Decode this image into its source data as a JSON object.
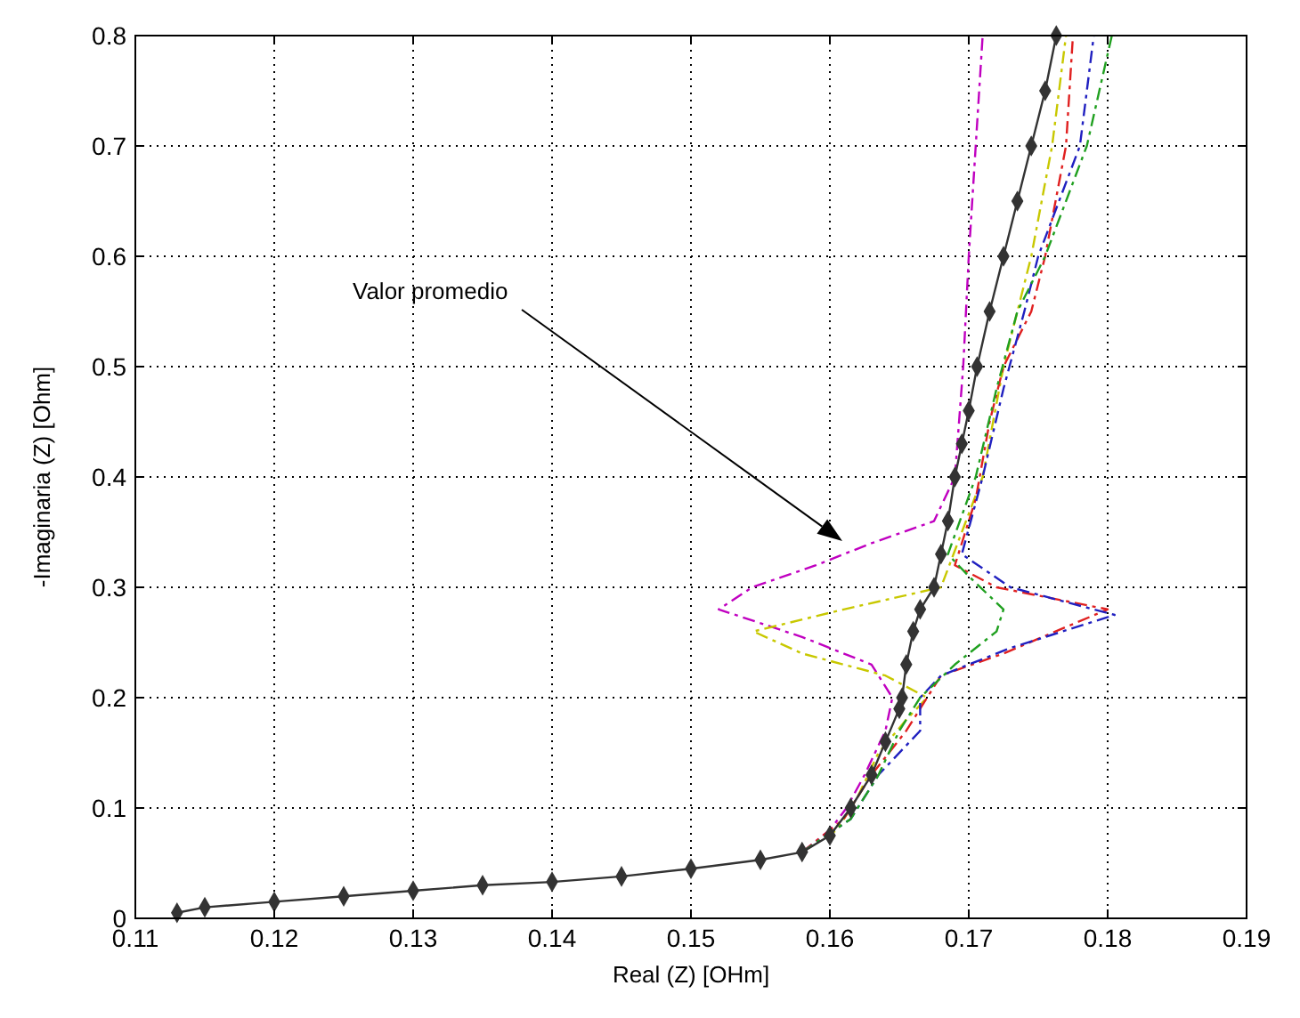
{
  "chart_data": {
    "type": "line",
    "xlabel": "Real (Z) [OHm]",
    "ylabel": "-Imaginaria (Z) [Ohm]",
    "xlim": [
      0.11,
      0.19
    ],
    "ylim": [
      0,
      0.8
    ],
    "xticks": [
      0.11,
      0.12,
      0.13,
      0.14,
      0.15,
      0.16,
      0.17,
      0.18,
      0.19
    ],
    "yticks": [
      0,
      0.1,
      0.2,
      0.3,
      0.4,
      0.5,
      0.6,
      0.7,
      0.8
    ],
    "grid": true,
    "annotations": [
      "Valor promedio"
    ],
    "series": [
      {
        "color": "#c000c0",
        "marker": "none",
        "line_style": "dashed",
        "x": [
          0.158,
          0.16,
          0.1612,
          0.1625,
          0.164,
          0.1645,
          0.163,
          0.158,
          0.152,
          0.1544,
          0.159,
          0.163,
          0.1675,
          0.169,
          0.1696,
          0.17,
          0.1705,
          0.171
        ],
        "values": [
          0.06,
          0.08,
          0.1,
          0.13,
          0.17,
          0.2,
          0.23,
          0.255,
          0.28,
          0.3,
          0.32,
          0.34,
          0.36,
          0.4,
          0.5,
          0.6,
          0.7,
          0.8
        ]
      },
      {
        "color": "#c8c800",
        "marker": "none",
        "line_style": "dashed",
        "x": [
          0.158,
          0.1605,
          0.162,
          0.1635,
          0.1655,
          0.167,
          0.164,
          0.158,
          0.1545,
          0.161,
          0.168,
          0.1695,
          0.171,
          0.1725,
          0.1745,
          0.176,
          0.177
        ],
        "values": [
          0.06,
          0.08,
          0.11,
          0.15,
          0.18,
          0.2,
          0.22,
          0.24,
          0.26,
          0.28,
          0.3,
          0.35,
          0.4,
          0.5,
          0.6,
          0.7,
          0.8
        ]
      },
      {
        "color": "#e02020",
        "marker": "none",
        "line_style": "dashed",
        "x": [
          0.158,
          0.161,
          0.163,
          0.1655,
          0.167,
          0.168,
          0.1725,
          0.18,
          0.172,
          0.169,
          0.1705,
          0.1715,
          0.1725,
          0.1745,
          0.1755,
          0.177,
          0.1775
        ],
        "values": [
          0.06,
          0.09,
          0.13,
          0.17,
          0.2,
          0.22,
          0.24,
          0.28,
          0.3,
          0.32,
          0.38,
          0.45,
          0.5,
          0.55,
          0.6,
          0.7,
          0.8
        ]
      },
      {
        "color": "#2020c0",
        "marker": "none",
        "line_style": "dashed",
        "x": [
          0.158,
          0.1615,
          0.1635,
          0.1665,
          0.1665,
          0.168,
          0.173,
          0.1805,
          0.173,
          0.1695,
          0.171,
          0.1725,
          0.174,
          0.175,
          0.178,
          0.179
        ],
        "values": [
          0.06,
          0.09,
          0.13,
          0.17,
          0.2,
          0.22,
          0.245,
          0.275,
          0.3,
          0.33,
          0.4,
          0.48,
          0.55,
          0.6,
          0.7,
          0.8
        ]
      },
      {
        "color": "#20a020",
        "marker": "none",
        "line_style": "dashed",
        "x": [
          0.158,
          0.1615,
          0.1635,
          0.165,
          0.1665,
          0.169,
          0.172,
          0.1725,
          0.17,
          0.1685,
          0.1705,
          0.172,
          0.1735,
          0.1755,
          0.1785,
          0.1803
        ],
        "values": [
          0.06,
          0.09,
          0.13,
          0.17,
          0.2,
          0.23,
          0.26,
          0.28,
          0.31,
          0.33,
          0.4,
          0.48,
          0.55,
          0.6,
          0.7,
          0.8
        ]
      },
      {
        "color": "#333333",
        "marker": "diamond",
        "line_style": "solid",
        "x": [
          0.113,
          0.115,
          0.12,
          0.125,
          0.13,
          0.135,
          0.14,
          0.145,
          0.15,
          0.155,
          0.158,
          0.16,
          0.1615,
          0.163,
          0.164,
          0.165,
          0.1652,
          0.1655,
          0.166,
          0.1665,
          0.1675,
          0.168,
          0.1685,
          0.169,
          0.1695,
          0.17,
          0.1706,
          0.1715,
          0.1725,
          0.1735,
          0.1745,
          0.1755,
          0.1763
        ],
        "values": [
          0.005,
          0.01,
          0.015,
          0.02,
          0.025,
          0.03,
          0.033,
          0.038,
          0.045,
          0.053,
          0.06,
          0.075,
          0.1,
          0.13,
          0.16,
          0.19,
          0.2,
          0.23,
          0.26,
          0.28,
          0.3,
          0.33,
          0.36,
          0.4,
          0.43,
          0.46,
          0.5,
          0.55,
          0.6,
          0.65,
          0.7,
          0.75,
          0.8
        ]
      }
    ]
  }
}
